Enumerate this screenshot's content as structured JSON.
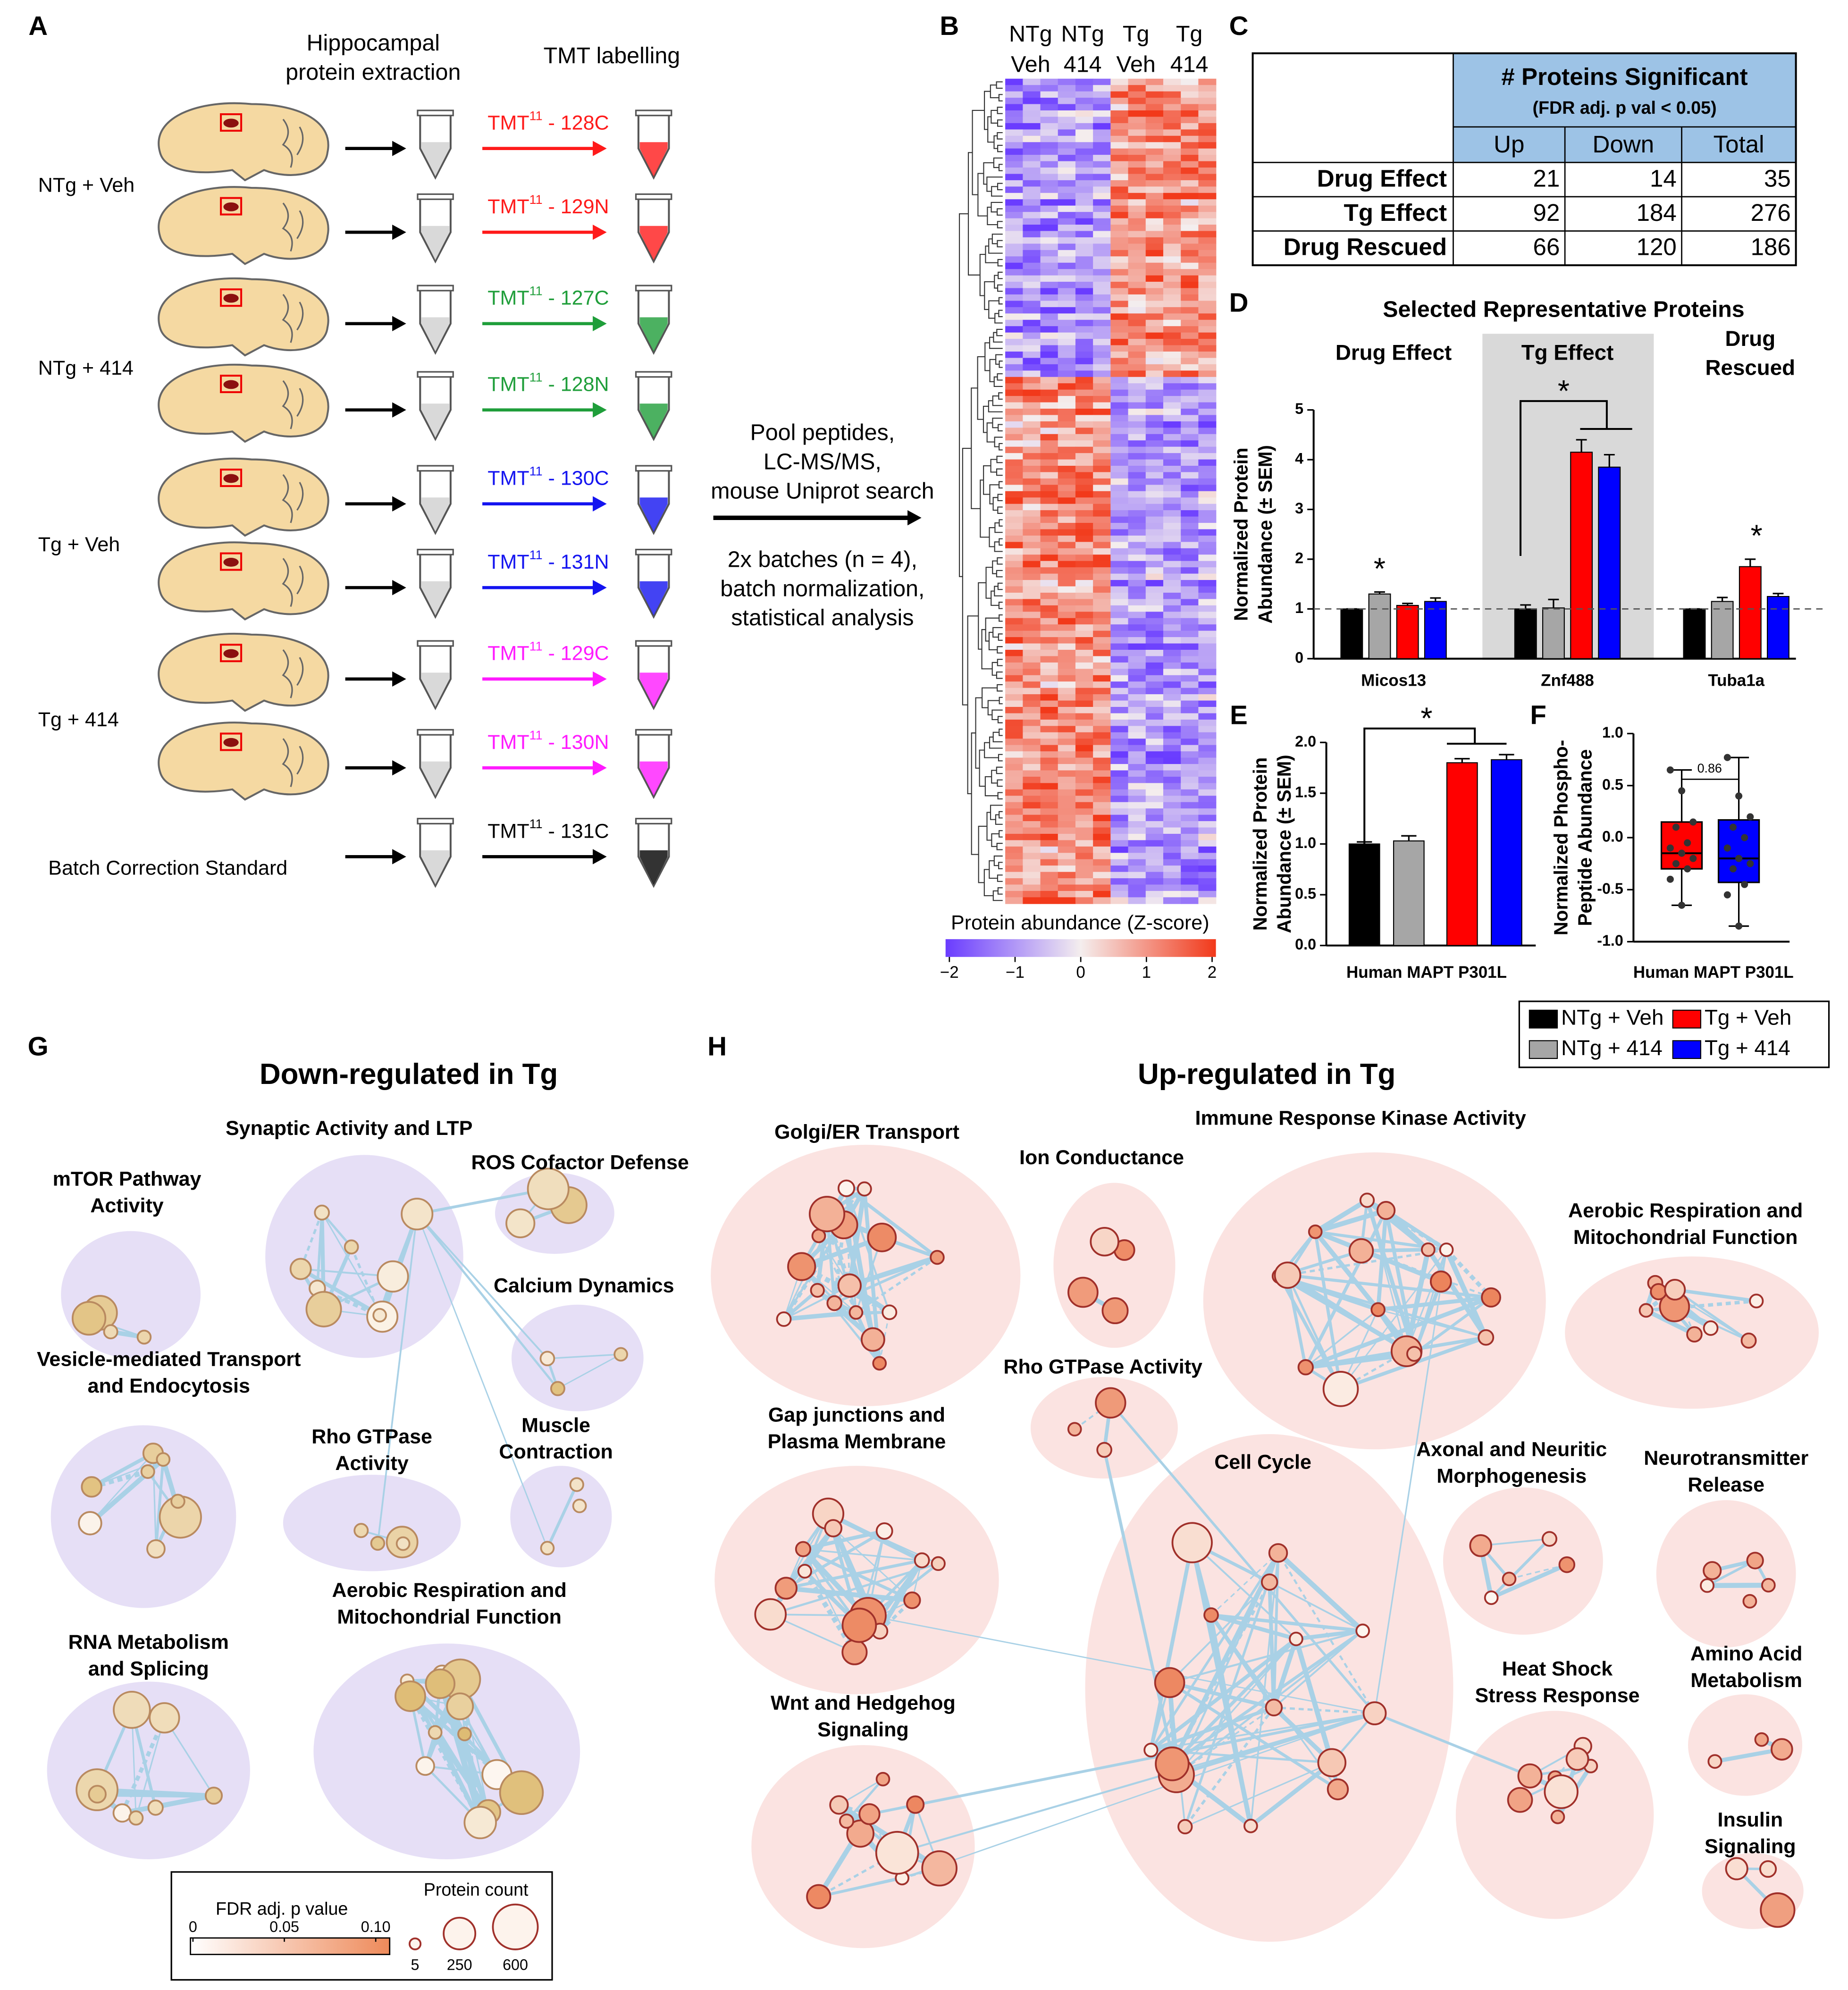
{
  "figure": {
    "panel_labels": [
      "A",
      "B",
      "C",
      "D",
      "E",
      "F",
      "G",
      "H"
    ],
    "a": {
      "header_extraction": [
        "Hippocampal",
        "protein extraction"
      ],
      "header_labelling": "TMT labelling",
      "groups": [
        "NTg + Veh",
        "NTg + 414",
        "Tg + Veh",
        "Tg + 414",
        "Batch Correction Standard"
      ],
      "tmt": "TMT",
      "tmt_sup": "11",
      "tmt_sep": " - ",
      "tags": [
        "128C",
        "129N",
        "127C",
        "128N",
        "130C",
        "131N",
        "129C",
        "130N",
        "131C"
      ],
      "tag_colors": [
        "#ff1a1a",
        "#ff1a1a",
        "#1f9e3a",
        "#1f9e3a",
        "#1414f0",
        "#1414f0",
        "#ff1aff",
        "#ff1aff",
        "#000000"
      ],
      "pool": [
        "Pool peptides,",
        "LC-MS/MS,",
        "mouse Uniprot search"
      ],
      "batch": [
        "2x batches (n = 4),",
        "batch normalization,",
        "statistical analysis"
      ]
    },
    "b": {
      "columns": [
        [
          "NTg",
          "Veh"
        ],
        [
          "NTg",
          "414"
        ],
        [
          "Tg",
          "Veh"
        ],
        [
          "Tg",
          "414"
        ]
      ],
      "colorbar_title": "Protein abundance (Z-score)",
      "colorbar_ticks": [
        {
          "value": -2,
          "label": "−2"
        },
        {
          "value": -1,
          "label": "−1"
        },
        0,
        1,
        2
      ]
    },
    "c": {
      "title": "# Proteins Significant",
      "subtitle": "(FDR adj. p val < 0.05)",
      "columns": [
        "Up",
        "Down",
        "Total"
      ],
      "rows": [
        {
          "label": "Drug Effect",
          "values": [
            21,
            14,
            35
          ]
        },
        {
          "label": "Tg Effect",
          "values": [
            92,
            184,
            276
          ]
        },
        {
          "label": "Drug Rescued",
          "values": [
            66,
            120,
            186
          ]
        }
      ]
    },
    "g": {
      "title": "Down-regulated in Tg",
      "clusters": [
        [
          "mTOR Pathway",
          "Activity"
        ],
        [
          "Synaptic Activity and LTP"
        ],
        [
          "ROS Cofactor Defense"
        ],
        [
          "Calcium Dynamics"
        ],
        [
          "Vesicle-mediated Transport",
          "and Endocytosis"
        ],
        [
          "Rho GTPase",
          "Activity"
        ],
        [
          "Muscle",
          "Contraction"
        ],
        [
          "RNA Metabolism",
          "and Splicing"
        ],
        [
          "Aerobic Respiration and",
          "Mitochondrial Function"
        ]
      ]
    },
    "h": {
      "title": "Up-regulated in Tg",
      "clusters": [
        [
          "Golgi/ER Transport"
        ],
        [
          "Ion Conductance"
        ],
        [
          "Immune Response Kinase Activity"
        ],
        [
          "Aerobic Respiration and",
          "Mitochondrial Function"
        ],
        [
          "Rho GTPase Activity"
        ],
        [
          "Gap junctions and",
          "Plasma Membrane"
        ],
        [
          "Cell Cycle"
        ],
        [
          "Axonal and Neuritic",
          "Morphogenesis"
        ],
        [
          "Neurotransmitter",
          "Release"
        ],
        [
          "Heat Shock",
          "Stress Response"
        ],
        [
          "Amino Acid",
          "Metabolism"
        ],
        [
          "Wnt and Hedgehog",
          "Signaling"
        ],
        [
          "Insulin",
          "Signaling"
        ]
      ]
    },
    "network_legend": {
      "fdr_title": "FDR adj. p value",
      "fdr_ticks": [
        0,
        0.05,
        {
          "value": 0.1,
          "label": "0.10"
        }
      ],
      "count_title": "Protein count",
      "count_ticks": [
        5,
        250,
        600
      ]
    }
  },
  "chart_data": [
    {
      "type": "bar",
      "title": "Selected Representative Proteins",
      "groups": [
        [
          "Drug Effect"
        ],
        [
          "Tg Effect"
        ],
        [
          "Drug",
          "Rescued"
        ]
      ],
      "categories": [
        "Micos13",
        "Znf488",
        "Tuba1a"
      ],
      "ylabel": [
        "Normalized Protein",
        "Abundance (± SEM)"
      ],
      "ylim": [
        0,
        5
      ],
      "yticks": [
        0,
        1,
        2,
        3,
        4,
        5
      ],
      "reference_line": 1,
      "series": [
        {
          "name": "NTg + Veh",
          "color": "#000000",
          "values": [
            1.0,
            1.0,
            1.0
          ],
          "errors": [
            0,
            0.08,
            0
          ]
        },
        {
          "name": "NTg + 414",
          "color": "#a6a6a6",
          "values": [
            1.3,
            1.02,
            1.15
          ],
          "errors": [
            0.04,
            0.17,
            0.08
          ]
        },
        {
          "name": "Tg + Veh",
          "color": "#ff0000",
          "values": [
            1.07,
            4.15,
            1.85
          ],
          "errors": [
            0.04,
            0.25,
            0.15
          ]
        },
        {
          "name": "Tg + 414",
          "color": "#0000ff",
          "values": [
            1.15,
            3.85,
            1.25
          ],
          "errors": [
            0.07,
            0.25,
            0.06
          ]
        }
      ],
      "annotations": [
        "*",
        "*",
        "*"
      ]
    },
    {
      "type": "bar",
      "categories": [
        "Human MAPT P301L"
      ],
      "ylabel": [
        "Normalized Protein",
        "Abundance (± SEM)"
      ],
      "ylim": [
        0,
        2
      ],
      "yticks": [
        {
          "value": 0,
          "label": "0.0"
        },
        0.5,
        {
          "value": 1,
          "label": "1.0"
        },
        1.5,
        {
          "value": 2,
          "label": "2.0"
        }
      ],
      "series": [
        {
          "color": "#000000",
          "values": [
            1.0
          ],
          "errors": [
            0.02
          ]
        },
        {
          "color": "#a6a6a6",
          "values": [
            1.03
          ],
          "errors": [
            0.05
          ]
        },
        {
          "color": "#ff0000",
          "values": [
            1.8
          ],
          "errors": [
            0.04
          ]
        },
        {
          "color": "#0000ff",
          "values": [
            1.83
          ],
          "errors": [
            0.05
          ]
        }
      ],
      "annotations": [
        "*"
      ]
    },
    {
      "type": "box",
      "categories": [
        "Human MAPT P301L"
      ],
      "ylabel": [
        "Normalized Phospho-",
        "Peptide Abundance"
      ],
      "ylim": [
        -1,
        1
      ],
      "yticks": [
        {
          "value": -1,
          "label": "-1.0"
        },
        {
          "value": -0.5,
          "label": "-0.5"
        },
        {
          "value": 0,
          "label": "0.0"
        },
        0.5,
        {
          "value": 1,
          "label": "1.0"
        }
      ],
      "series": [
        {
          "color": "#ff0000",
          "min": -0.65,
          "q1": -0.3,
          "median": -0.15,
          "q3": 0.15,
          "max": 0.65,
          "points": [
            0.65,
            0.45,
            0.15,
            0.1,
            -0.05,
            -0.1,
            -0.15,
            -0.2,
            -0.25,
            -0.3,
            -0.4,
            -0.65
          ]
        },
        {
          "color": "#0000ff",
          "min": -0.85,
          "q1": -0.43,
          "median": -0.2,
          "q3": 0.17,
          "max": 0.77,
          "points": [
            0.77,
            0.4,
            0.2,
            0.1,
            0.0,
            -0.1,
            -0.2,
            -0.25,
            -0.3,
            -0.45,
            -0.55,
            -0.85
          ]
        }
      ],
      "annotations": [
        "0.86"
      ]
    }
  ]
}
